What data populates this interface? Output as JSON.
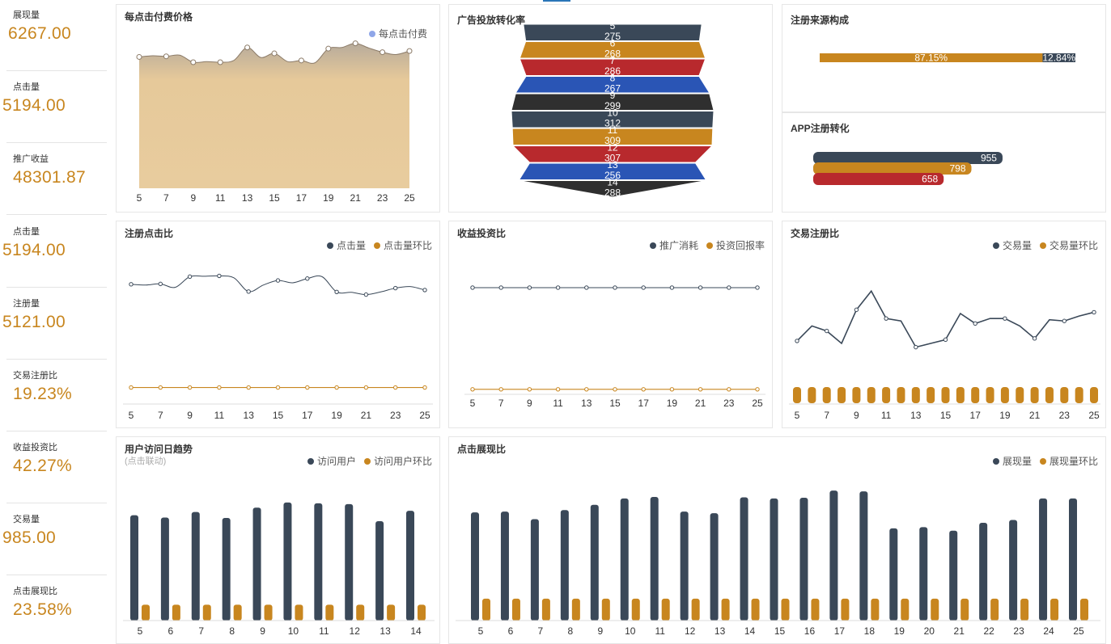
{
  "kpis": [
    {
      "label": "展现量",
      "value": "6267.00"
    },
    {
      "label": "点击量",
      "value": "5194.00"
    },
    {
      "label": "推广收益",
      "value": "48301.87"
    },
    {
      "label": "点击量",
      "value": "5194.00"
    },
    {
      "label": "注册量",
      "value": "5121.00"
    },
    {
      "label": "交易注册比",
      "value": "19.23%"
    },
    {
      "label": "收益投资比",
      "value": "42.27%"
    },
    {
      "label": "交易量",
      "value": "985.00"
    },
    {
      "label": "点击展现比",
      "value": "23.58%"
    }
  ],
  "colors": {
    "dark": "#3a4858",
    "orange": "#c8861f",
    "red": "#b8292d",
    "blue": "#2a55b5",
    "black": "#333333",
    "tan": "#e6c99a",
    "line": "#8c7b68"
  },
  "panels": {
    "cpc": {
      "title": "每点击付费价格"
    },
    "funnel": {
      "title": "广告投放转化率"
    },
    "source": {
      "title": "注册来源构成"
    },
    "app": {
      "title": "APP注册转化"
    },
    "regclick": {
      "title": "注册点击比"
    },
    "roi": {
      "title": "收益投资比"
    },
    "tradereg": {
      "title": "交易注册比"
    },
    "visits": {
      "title": "用户访问日趋势",
      "subtitle": "(点击联动)"
    },
    "clickshow": {
      "title": "点击展现比"
    }
  },
  "chart_data": [
    {
      "id": "cpc",
      "type": "area",
      "x": [
        "5",
        "6",
        "7",
        "8",
        "9",
        "10",
        "11",
        "12",
        "13",
        "14",
        "15",
        "16",
        "17",
        "18",
        "19",
        "20",
        "21",
        "22",
        "23",
        "24",
        "25"
      ],
      "series": [
        {
          "name": "每点击付费",
          "values": [
            0.72,
            0.74,
            0.73,
            0.75,
            0.63,
            0.64,
            0.63,
            0.66,
            0.88,
            0.71,
            0.78,
            0.64,
            0.66,
            0.62,
            0.86,
            0.88,
            0.95,
            0.87,
            0.8,
            0.76,
            0.82
          ]
        }
      ],
      "ylim": [
        -1.5,
        1.6
      ],
      "legend": "top-right"
    },
    {
      "id": "funnel",
      "type": "funnel",
      "segments": [
        {
          "label": "5",
          "value": 275
        },
        {
          "label": "6",
          "value": 268
        },
        {
          "label": "7",
          "value": 286
        },
        {
          "label": "8",
          "value": 267
        },
        {
          "label": "9",
          "value": 299
        },
        {
          "label": "10",
          "value": 312
        },
        {
          "label": "11",
          "value": 309
        },
        {
          "label": "12",
          "value": 307
        },
        {
          "label": "13",
          "value": 256
        },
        {
          "label": "14",
          "value": 288
        }
      ]
    },
    {
      "id": "source",
      "type": "bar",
      "segments": [
        {
          "label": "87.15%",
          "value": 87.15
        },
        {
          "label": "12.84%",
          "value": 12.84
        }
      ]
    },
    {
      "id": "app",
      "type": "bar",
      "bars": [
        {
          "label": "955",
          "value": 955
        },
        {
          "label": "798",
          "value": 798
        },
        {
          "label": "658",
          "value": 658
        }
      ],
      "xlim": [
        0,
        1000
      ]
    },
    {
      "id": "regclick",
      "type": "line",
      "x": [
        "5",
        "6",
        "7",
        "8",
        "9",
        "10",
        "11",
        "12",
        "13",
        "14",
        "15",
        "16",
        "17",
        "18",
        "19",
        "20",
        "21",
        "22",
        "23",
        "24",
        "25"
      ],
      "series": [
        {
          "name": "点击量",
          "values": [
            270,
            268,
            271,
            262,
            290,
            291,
            292,
            287,
            251,
            268,
            280,
            274,
            285,
            290,
            250,
            249,
            243,
            250,
            260,
            264,
            255
          ]
        },
        {
          "name": "点击量环比",
          "values": [
            0,
            0,
            0,
            0,
            0,
            0,
            0,
            0,
            0,
            0,
            0,
            0,
            0,
            0,
            0,
            0,
            0,
            0,
            0,
            0,
            0
          ]
        }
      ],
      "ylim": [
        -20,
        350
      ],
      "legend": "top-right"
    },
    {
      "id": "roi",
      "type": "line",
      "x": [
        "5",
        "6",
        "7",
        "8",
        "9",
        "10",
        "11",
        "12",
        "13",
        "14",
        "15",
        "16",
        "17",
        "18",
        "19",
        "20",
        "21",
        "22",
        "23",
        "24",
        "25"
      ],
      "series": [
        {
          "name": "推广消耗",
          "values": [
            300,
            300,
            300,
            300,
            300,
            300,
            300,
            300,
            300,
            300,
            300,
            300,
            300,
            300,
            300,
            300,
            300,
            300,
            300,
            300,
            300
          ]
        },
        {
          "name": "投资回报率",
          "values": [
            0,
            0,
            0,
            0,
            0,
            0,
            0,
            0,
            0,
            0,
            0,
            0,
            0,
            0,
            0,
            0,
            0,
            0,
            0,
            0,
            0
          ]
        }
      ],
      "ylim": [
        -10,
        400
      ],
      "legend": "top-right"
    },
    {
      "id": "tradereg",
      "type": "bar-line",
      "x": [
        "5",
        "6",
        "7",
        "8",
        "9",
        "10",
        "11",
        "12",
        "13",
        "14",
        "15",
        "16",
        "17",
        "18",
        "19",
        "20",
        "21",
        "22",
        "23",
        "24",
        "25"
      ],
      "series": [
        {
          "name": "交易量",
          "values": [
            50,
            62,
            58,
            48,
            75,
            90,
            68,
            66,
            45,
            48,
            51,
            72,
            64,
            68,
            68,
            62,
            52,
            67,
            66,
            70,
            73
          ]
        },
        {
          "name": "交易量环比",
          "values": [
            1,
            1,
            1,
            1,
            1,
            1,
            1,
            1,
            1,
            1,
            1,
            1,
            1,
            1,
            1,
            1,
            1,
            1,
            1,
            1,
            1
          ]
        }
      ],
      "ylim": [
        0,
        120
      ],
      "legend": "top-right"
    },
    {
      "id": "visits",
      "type": "bar",
      "categories": [
        "5",
        "6",
        "7",
        "8",
        "9",
        "10",
        "11",
        "12",
        "13",
        "14"
      ],
      "series": [
        {
          "name": "访问用户",
          "values": [
            265,
            259,
            273,
            258,
            284,
            297,
            295,
            293,
            250,
            276
          ]
        },
        {
          "name": "访问用户环比",
          "values": [
            40,
            40,
            40,
            40,
            40,
            40,
            40,
            40,
            40,
            40
          ]
        }
      ],
      "ylim": [
        0,
        380
      ],
      "legend": "top-right"
    },
    {
      "id": "clickshow",
      "type": "bar",
      "categories": [
        "5",
        "6",
        "7",
        "8",
        "9",
        "10",
        "11",
        "12",
        "13",
        "14",
        "15",
        "16",
        "17",
        "18",
        "19",
        "20",
        "21",
        "22",
        "23",
        "24",
        "25"
      ],
      "series": [
        {
          "name": "展现量",
          "values": [
            272,
            274,
            255,
            278,
            291,
            307,
            311,
            274,
            270,
            310,
            307,
            309,
            327,
            325,
            232,
            235,
            226,
            246,
            253,
            307,
            307
          ]
        },
        {
          "name": "展现量环比",
          "values": [
            55,
            55,
            55,
            55,
            55,
            55,
            55,
            55,
            55,
            55,
            55,
            55,
            55,
            55,
            55,
            55,
            55,
            55,
            55,
            55,
            55
          ]
        }
      ],
      "ylim": [
        0,
        380
      ],
      "legend": "top-right"
    }
  ]
}
